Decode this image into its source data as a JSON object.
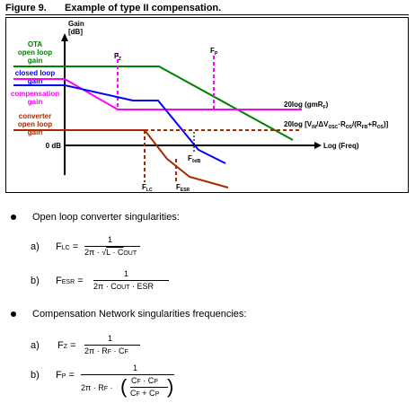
{
  "figure": {
    "number": "Figure 9.",
    "title": "Example of type II compensation.",
    "y_axis_label_line1": "Gain",
    "y_axis_label_line2": "[dB]",
    "x_axis_label": "Log (Freq)",
    "zero_db_label": "0 dB",
    "legend": {
      "ota": [
        "OTA",
        "open loop",
        "gain"
      ],
      "closed": [
        "closed loop",
        "gain"
      ],
      "compensation": [
        "compensation",
        "gain"
      ],
      "converter": [
        "converter",
        "open loop",
        "gain"
      ]
    },
    "markers": {
      "fz": "F",
      "fz_sub": "Z",
      "fp": "F",
      "fp_sub": "P",
      "flc": "F",
      "flc_sub": "LC",
      "fesr": "F",
      "fesr_sub": "ESR",
      "f0db": "F",
      "f0db_sub": "0dB"
    },
    "annotations": {
      "gm_main": "20log (gmR",
      "gm_sub": "F",
      "gm_end": ")",
      "vin_main": "20log [V",
      "vin_sub1": "IN",
      "vin_mid1": "/ΔV",
      "vin_sub2": "OSC",
      "vin_mid2": "·R",
      "vin_sub3": "OS",
      "vin_mid3": "/(R",
      "vin_sub4": "FB",
      "vin_mid4": "+R",
      "vin_sub5": "OS",
      "vin_end": ")]"
    },
    "colors": {
      "ota": "#008000",
      "closed": "#0000ff",
      "compensation": "#ff00ff",
      "converter": "#a52a00",
      "axis": "#000000"
    }
  },
  "sections": [
    {
      "text": "Open loop converter singularities:"
    },
    {
      "text": "Compensation Network singularities frequencies:"
    }
  ],
  "equations": {
    "a1": {
      "label": "a)",
      "lhs": "F",
      "lhs_sub": "LC",
      "eq": "=",
      "num": "1",
      "den_pre": "2π ·",
      "den_root": "L ·  C",
      "den_sub": "OUT"
    },
    "b1": {
      "label": "b)",
      "lhs": "F",
      "lhs_sub": "ESR",
      "eq": "=",
      "num": "1",
      "den_pre": "2π ·  C",
      "den_sub": "OUT",
      "den_post": "·  ESR"
    },
    "a2": {
      "label": "a)",
      "lhs": "F",
      "lhs_sub": "Z",
      "eq": "=",
      "num": "1",
      "den_pre": "2π ·  R",
      "den_sub1": "F",
      "den_mid": "·  C",
      "den_sub2": "F"
    },
    "b2": {
      "label": "b)",
      "lhs": "F",
      "lhs_sub": "P",
      "eq": "=",
      "num": "1",
      "den_pre": "2π ·  R",
      "den_sub1": "F",
      "den_mid": "·",
      "inner_num": "C",
      "inner_num_sub1": "F",
      "inner_num_mid": "·  C",
      "inner_num_sub2": "P",
      "inner_den": "C",
      "inner_den_sub1": "F",
      "inner_den_mid": "+ C",
      "inner_den_sub2": "P"
    }
  }
}
